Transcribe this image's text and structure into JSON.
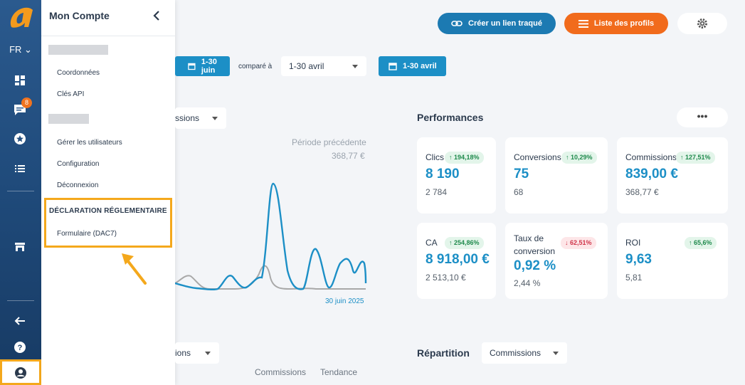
{
  "rail": {
    "lang": "FR",
    "badge_count": "8",
    "accent": "#f4a81c"
  },
  "menu": {
    "title": "Mon Compte",
    "items_group1": [
      "Coordonnées",
      "Clés API"
    ],
    "items_group2": [
      "Gérer les utilisateurs",
      "Configuration",
      "Déconnexion"
    ],
    "section_title": "DÉCLARATION RÉGLEMENTAIRE",
    "section_item": "Formulaire (DAC7)"
  },
  "toolbar": {
    "track_link_label": "Créer un lien traqué",
    "profiles_label": "Liste des profils"
  },
  "filters": {
    "period_label": "1-30 juin",
    "compare_label": "comparé à",
    "compare_select": "1-30 avril",
    "compare_btn_label": "1-30 avril"
  },
  "chart": {
    "metric_select": "ssions",
    "prev_period_label": "Période précédente",
    "prev_period_value": "368,77 €",
    "end_date_label": "30 juin 2025"
  },
  "performances": {
    "title": "Performances",
    "more_label": "•••",
    "cards": [
      {
        "label": "Clics",
        "change": "194,18%",
        "direction": "up",
        "value": "8 190",
        "prev": "2 784"
      },
      {
        "label": "Conversions",
        "change": "10,29%",
        "direction": "up",
        "value": "75",
        "prev": "68"
      },
      {
        "label": "Commissions",
        "change": "127,51%",
        "direction": "up",
        "value": "839,00 €",
        "prev": "368,77 €"
      },
      {
        "label": "CA",
        "change": "254,86%",
        "direction": "up",
        "value": "8 918,00 €",
        "prev": "2 513,10 €"
      },
      {
        "label": "Taux de conversion",
        "change": "62,51%",
        "direction": "down",
        "value": "0,92 %",
        "prev": "2,44 %"
      },
      {
        "label": "ROI",
        "change": "65,6%",
        "direction": "up",
        "value": "9,63",
        "prev": "5,81"
      }
    ]
  },
  "bottom": {
    "left_select": "ions",
    "repartition_title": "Répartition",
    "repartition_select": "Commissions",
    "col_commissions": "Commissions",
    "col_tendance": "Tendance"
  }
}
